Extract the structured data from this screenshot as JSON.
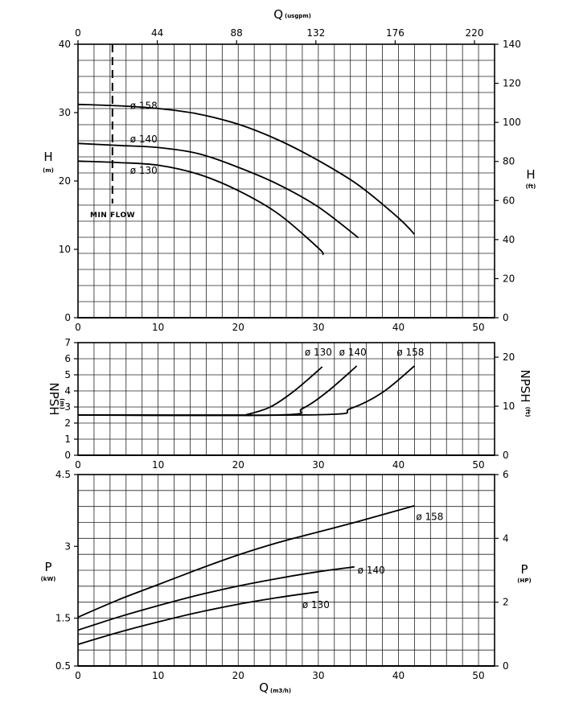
{
  "chart_data": [
    {
      "type": "line",
      "panel": "head",
      "x_unit_label": "Q",
      "x_unit_sub": "(m3/h)",
      "xlim": [
        0,
        52
      ],
      "xticks": [
        0,
        10,
        20,
        30,
        40,
        50
      ],
      "top_axis": {
        "label": "Q",
        "sub": "(usgpm)",
        "ticks": [
          0,
          44,
          88,
          132,
          176,
          220
        ]
      },
      "left_axis": {
        "label": "H",
        "sub": "(m)",
        "ylim": [
          0,
          40
        ],
        "ticks": [
          0,
          10,
          20,
          30,
          40
        ]
      },
      "right_axis": {
        "label": "H",
        "sub": "(ft)",
        "ticks": [
          0,
          20,
          40,
          60,
          80,
          100,
          120,
          140
        ]
      },
      "min_flow": {
        "x": 4.3,
        "label": "MIN FLOW"
      },
      "grid": true,
      "series": [
        {
          "name": "ø 158",
          "x": [
            0,
            5,
            10,
            15,
            20,
            25,
            30,
            35,
            40,
            42
          ],
          "y": [
            31.2,
            31.0,
            30.6,
            29.8,
            28.3,
            26.0,
            23.0,
            19.4,
            14.6,
            12.2
          ]
        },
        {
          "name": "ø 140",
          "x": [
            0,
            5,
            10,
            15,
            20,
            25,
            30,
            35
          ],
          "y": [
            25.5,
            25.2,
            24.9,
            24.0,
            22.0,
            19.5,
            16.2,
            11.7
          ]
        },
        {
          "name": "ø 130",
          "x": [
            0,
            5,
            10,
            15,
            20,
            25,
            30,
            30.6
          ],
          "y": [
            22.9,
            22.7,
            22.3,
            21.0,
            18.6,
            15.2,
            10.2,
            9.2
          ]
        }
      ]
    },
    {
      "type": "line",
      "panel": "npsh",
      "xlim": [
        0,
        52
      ],
      "xticks": [
        0,
        10,
        20,
        30,
        40,
        50
      ],
      "left_axis": {
        "label": "NPSH",
        "sub": "(m)",
        "ylim": [
          0,
          7
        ],
        "ticks": [
          0,
          1,
          2,
          3,
          4,
          5,
          6,
          7
        ]
      },
      "right_axis": {
        "label": "NPSH",
        "sub": "(ft)",
        "ticks": [
          0,
          10,
          20
        ]
      },
      "grid": true,
      "series": [
        {
          "name": "ø 130",
          "x": [
            0,
            20,
            21,
            24,
            27,
            30.5
          ],
          "y": [
            2.5,
            2.5,
            2.52,
            3.0,
            4.0,
            5.5
          ]
        },
        {
          "name": "ø 140",
          "x": [
            0,
            25,
            28,
            31,
            34.8
          ],
          "y": [
            2.5,
            2.5,
            2.9,
            3.9,
            5.55
          ]
        },
        {
          "name": "ø 158",
          "x": [
            0,
            30,
            34,
            38,
            42
          ],
          "y": [
            2.5,
            2.52,
            2.9,
            3.9,
            5.55
          ]
        }
      ]
    },
    {
      "type": "line",
      "panel": "power",
      "xlabel": "Q",
      "xlabel_sub": "(m3/h)",
      "xlim": [
        0,
        52
      ],
      "xticks": [
        0,
        10,
        20,
        30,
        40,
        50
      ],
      "left_axis": {
        "label": "P",
        "sub": "(kW)",
        "ylim": [
          0.5,
          4.5
        ],
        "ticks": [
          "0.5",
          "1.5",
          "3",
          "4.5"
        ],
        "tick_values": [
          0.5,
          1.5,
          3,
          4.5
        ]
      },
      "right_axis": {
        "label": "P",
        "sub": "(HP)",
        "ticks": [
          0,
          2,
          4,
          6
        ]
      },
      "grid": true,
      "series": [
        {
          "name": "ø 158",
          "x": [
            0,
            5,
            10,
            15,
            20,
            25,
            30,
            35,
            42
          ],
          "y": [
            1.52,
            1.88,
            2.2,
            2.52,
            2.82,
            3.08,
            3.3,
            3.52,
            3.85
          ]
        },
        {
          "name": "ø 140",
          "x": [
            0,
            5,
            10,
            15,
            20,
            25,
            30,
            34.5
          ],
          "y": [
            1.25,
            1.52,
            1.76,
            1.98,
            2.17,
            2.33,
            2.47,
            2.57
          ]
        },
        {
          "name": "ø 130",
          "x": [
            0,
            5,
            10,
            15,
            20,
            25,
            30
          ],
          "y": [
            0.95,
            1.2,
            1.42,
            1.62,
            1.79,
            1.93,
            2.05
          ]
        }
      ]
    }
  ]
}
